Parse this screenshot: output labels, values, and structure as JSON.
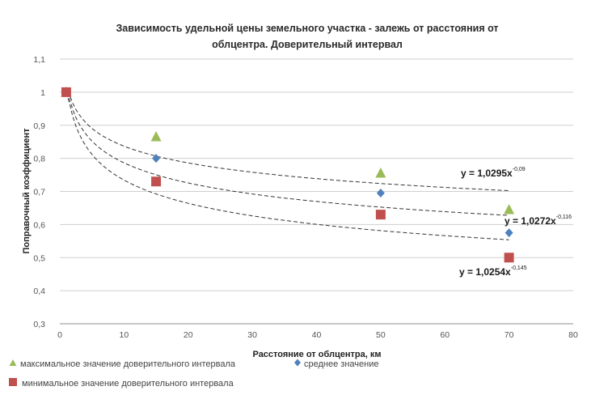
{
  "chart_data": {
    "type": "scatter",
    "title": [
      "Зависимость удельной цены земельного участка - залежь от расстояния от",
      "облцентра. Доверительный интервал"
    ],
    "xlabel": "Расстояние от облцентра, км",
    "ylabel": "Поправочный коэффициент",
    "xlim": [
      0,
      80
    ],
    "ylim": [
      0.3,
      1.1
    ],
    "x_ticks": [
      0,
      10,
      20,
      30,
      40,
      50,
      60,
      70,
      80
    ],
    "y_ticks": [
      0.3,
      0.4,
      0.5,
      0.6,
      0.7,
      0.8,
      0.9,
      1.0,
      1.1
    ],
    "y_tick_labels": [
      "0,3",
      "0,4",
      "0,5",
      "0,6",
      "0,7",
      "0,8",
      "0,9",
      "1",
      "1,1"
    ],
    "grid": "horizontal",
    "legend_position": "bottom",
    "series": [
      {
        "name": "максимальное значение доверительного интервала",
        "marker": "triangle",
        "color": "#9BBB59",
        "points": [
          [
            1,
            1.0
          ],
          [
            15,
            0.865
          ],
          [
            50,
            0.755
          ],
          [
            70,
            0.645
          ]
        ],
        "trendline": {
          "a": 1.0295,
          "b": -0.09,
          "equation": "y = 1,0295x",
          "exponent": "-0,09"
        }
      },
      {
        "name": "среднее значение",
        "marker": "diamond",
        "color": "#4F81BD",
        "points": [
          [
            1,
            1.0
          ],
          [
            15,
            0.8
          ],
          [
            50,
            0.695
          ],
          [
            70,
            0.575
          ]
        ],
        "trendline": {
          "a": 1.0272,
          "b": -0.116,
          "equation": "y = 1,0272x",
          "exponent": "-0,116"
        }
      },
      {
        "name": "минимальное значение доверительного интервала",
        "marker": "square",
        "color": "#C0504D",
        "points": [
          [
            1,
            1.0
          ],
          [
            15,
            0.73
          ],
          [
            50,
            0.63
          ],
          [
            70,
            0.5
          ]
        ],
        "trendline": {
          "a": 1.0254,
          "b": -0.145,
          "equation": "y = 1,0254x",
          "exponent": "-0,145"
        }
      }
    ]
  }
}
